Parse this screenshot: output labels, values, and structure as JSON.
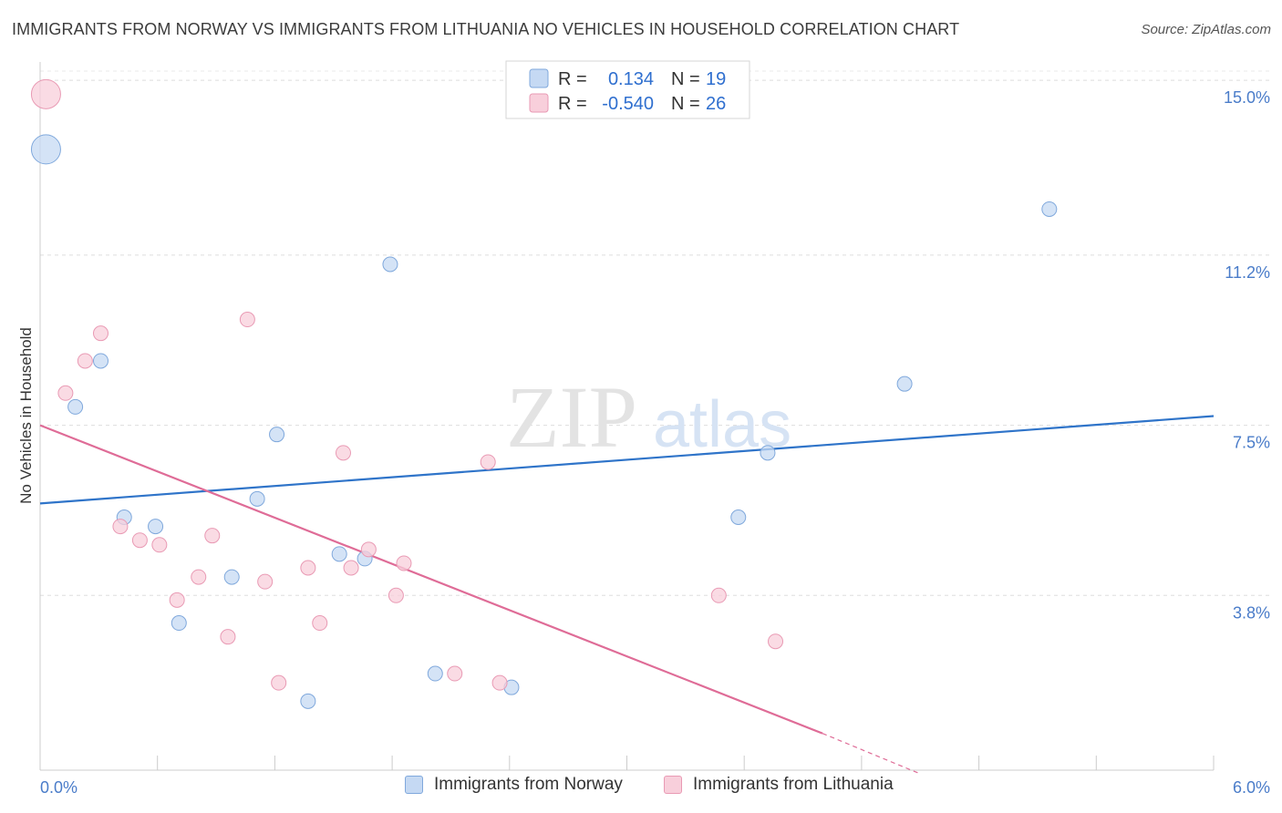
{
  "title": "IMMIGRANTS FROM NORWAY VS IMMIGRANTS FROM LITHUANIA NO VEHICLES IN HOUSEHOLD CORRELATION CHART",
  "source": "Source: ZipAtlas.com",
  "watermark": {
    "zip": "ZIP",
    "atlas": "atlas"
  },
  "colors": {
    "norway_fill": "#c5d9f3",
    "norway_stroke": "#7fa8dc",
    "norway_line": "#2f74c9",
    "lithuania_fill": "#f8cfdb",
    "lithuania_stroke": "#e99ab4",
    "lithuania_line": "#df6c97",
    "tick_label": "#4a7cc9",
    "grid": "#dddddd"
  },
  "legend": {
    "rows": [
      {
        "r_label": "R =",
        "r_value": "0.134",
        "n_label": "N =",
        "n_value": "19"
      },
      {
        "r_label": "R =",
        "r_value": "-0.540",
        "n_label": "N =",
        "n_value": "26"
      }
    ]
  },
  "bottom_legend": {
    "norway": "Immigrants from Norway",
    "lithuania": "Immigrants from Lithuania"
  },
  "chart_data": {
    "type": "scatter",
    "title": "IMMIGRANTS FROM NORWAY VS IMMIGRANTS FROM LITHUANIA NO VEHICLES IN HOUSEHOLD CORRELATION CHART",
    "xlabel": "",
    "ylabel": "No Vehicles in Household",
    "xlim": [
      0,
      6.0
    ],
    "ylim": [
      0,
      15.4
    ],
    "x_tick_labels": [
      "0.0%",
      "6.0%"
    ],
    "y_ticks": [
      3.8,
      7.5,
      11.2,
      15.0
    ],
    "y_tick_labels": [
      "3.8%",
      "7.5%",
      "11.2%",
      "15.0%"
    ],
    "grid": true,
    "series": [
      {
        "name": "Immigrants from Norway",
        "points": [
          {
            "x": 0.03,
            "y": 13.5,
            "size": "large"
          },
          {
            "x": 0.18,
            "y": 7.9
          },
          {
            "x": 0.31,
            "y": 8.9
          },
          {
            "x": 0.43,
            "y": 5.5
          },
          {
            "x": 0.59,
            "y": 5.3
          },
          {
            "x": 0.71,
            "y": 3.2
          },
          {
            "x": 0.98,
            "y": 4.2
          },
          {
            "x": 1.11,
            "y": 5.9
          },
          {
            "x": 1.21,
            "y": 7.3
          },
          {
            "x": 1.37,
            "y": 1.5
          },
          {
            "x": 1.53,
            "y": 4.7
          },
          {
            "x": 1.66,
            "y": 4.6
          },
          {
            "x": 1.79,
            "y": 11.0
          },
          {
            "x": 2.02,
            "y": 2.1
          },
          {
            "x": 2.41,
            "y": 1.8
          },
          {
            "x": 3.57,
            "y": 5.5
          },
          {
            "x": 3.72,
            "y": 6.9
          },
          {
            "x": 4.42,
            "y": 8.4
          },
          {
            "x": 5.16,
            "y": 12.2
          }
        ],
        "trend": {
          "x1": 0.0,
          "y1": 5.8,
          "x2": 6.0,
          "y2": 7.7
        }
      },
      {
        "name": "Immigrants from Lithuania",
        "points": [
          {
            "x": 0.03,
            "y": 14.7,
            "size": "large"
          },
          {
            "x": 0.13,
            "y": 8.2
          },
          {
            "x": 0.23,
            "y": 8.9
          },
          {
            "x": 0.31,
            "y": 9.5
          },
          {
            "x": 0.41,
            "y": 5.3
          },
          {
            "x": 0.51,
            "y": 5.0
          },
          {
            "x": 0.61,
            "y": 4.9
          },
          {
            "x": 0.7,
            "y": 3.7
          },
          {
            "x": 0.81,
            "y": 4.2
          },
          {
            "x": 0.88,
            "y": 5.1
          },
          {
            "x": 0.96,
            "y": 2.9
          },
          {
            "x": 1.06,
            "y": 9.8
          },
          {
            "x": 1.15,
            "y": 4.1
          },
          {
            "x": 1.22,
            "y": 1.9
          },
          {
            "x": 1.37,
            "y": 4.4
          },
          {
            "x": 1.43,
            "y": 3.2
          },
          {
            "x": 1.55,
            "y": 6.9
          },
          {
            "x": 1.59,
            "y": 4.4
          },
          {
            "x": 1.68,
            "y": 4.8
          },
          {
            "x": 1.82,
            "y": 3.8
          },
          {
            "x": 1.86,
            "y": 4.5
          },
          {
            "x": 2.12,
            "y": 2.1
          },
          {
            "x": 2.29,
            "y": 6.7
          },
          {
            "x": 2.35,
            "y": 1.9
          },
          {
            "x": 3.47,
            "y": 3.8
          },
          {
            "x": 3.76,
            "y": 2.8
          }
        ],
        "trend": {
          "x1": 0.0,
          "y1": 7.5,
          "x2": 4.0,
          "y2": 0.8
        },
        "trend_extension": {
          "x1": 4.0,
          "y1": 0.8,
          "x2": 4.5,
          "y2": -0.08
        }
      }
    ]
  }
}
